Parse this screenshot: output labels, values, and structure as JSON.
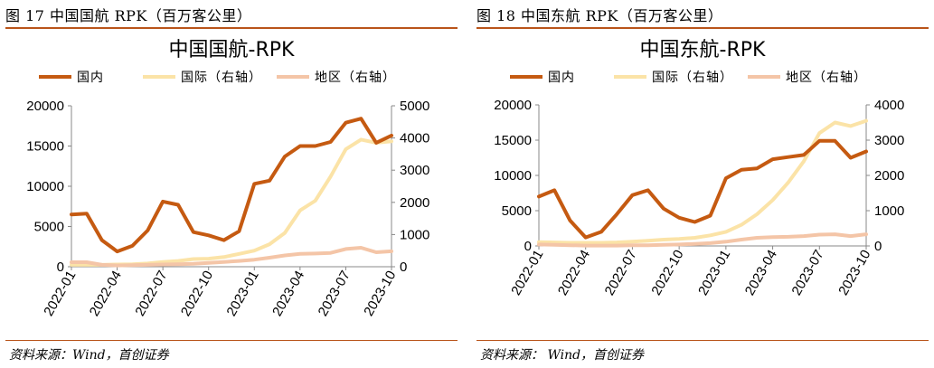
{
  "charts": [
    {
      "caption": "图 17 中国国航 RPK（百万客公里）",
      "source": "资料来源：Wind，首创证券",
      "chart_data": {
        "type": "line",
        "title": "中国国航-RPK",
        "x": [
          "2022-01",
          "2022-02",
          "2022-03",
          "2022-04",
          "2022-05",
          "2022-06",
          "2022-07",
          "2022-08",
          "2022-09",
          "2022-10",
          "2022-11",
          "2022-12",
          "2023-01",
          "2023-02",
          "2023-03",
          "2023-04",
          "2023-05",
          "2023-06",
          "2023-07",
          "2023-08",
          "2023-09",
          "2023-10"
        ],
        "x_tick_labels": [
          "2022-01",
          "2022-04",
          "2022-07",
          "2022-10",
          "2023-01",
          "2023-04",
          "2023-07",
          "2023-10"
        ],
        "ylim_left": [
          0,
          20000
        ],
        "yticks_left": [
          "0",
          "5000",
          "10000",
          "15000",
          "20000"
        ],
        "ylim_right": [
          0,
          5000
        ],
        "yticks_right": [
          "0",
          "1000",
          "2000",
          "3000",
          "4000",
          "5000"
        ],
        "series": [
          {
            "name": "国内",
            "axis": "left",
            "color": "#c55a11",
            "values": [
              6500,
              6600,
              3300,
              1900,
              2600,
              4500,
              8100,
              7700,
              4300,
              3900,
              3300,
              4400,
              10300,
              10700,
              13700,
              15000,
              15000,
              15500,
              17900,
              18400,
              15400,
              16300
            ]
          },
          {
            "name": "国际（右轴）",
            "axis": "right",
            "color": "#fbe3a7",
            "values": [
              60,
              60,
              60,
              70,
              80,
              100,
              150,
              180,
              240,
              250,
              300,
              400,
              500,
              700,
              1050,
              1750,
              2050,
              2800,
              3650,
              3950,
              3850,
              3900
            ]
          },
          {
            "name": "地区（右轴）",
            "axis": "right",
            "color": "#f4c5a7",
            "values": [
              140,
              140,
              60,
              40,
              50,
              60,
              70,
              80,
              90,
              120,
              150,
              180,
              220,
              280,
              350,
              400,
              410,
              430,
              550,
              590,
              450,
              480
            ]
          }
        ]
      }
    },
    {
      "caption": "图 18 中国东航 RPK（百万客公里）",
      "source": "资料来源： Wind，首创证券",
      "chart_data": {
        "type": "line",
        "title": "中国东航-RPK",
        "x": [
          "2022-01",
          "2022-02",
          "2022-03",
          "2022-04",
          "2022-05",
          "2022-06",
          "2022-07",
          "2022-08",
          "2022-09",
          "2022-10",
          "2022-11",
          "2022-12",
          "2023-01",
          "2023-02",
          "2023-03",
          "2023-04",
          "2023-05",
          "2023-06",
          "2023-07",
          "2023-08",
          "2023-09",
          "2023-10"
        ],
        "x_tick_labels": [
          "2022-01",
          "2022-04",
          "2022-07",
          "2022-10",
          "2023-01",
          "2023-04",
          "2023-07",
          "2023-10"
        ],
        "ylim_left": [
          0,
          20000
        ],
        "yticks_left": [
          "0",
          "5000",
          "10000",
          "15000",
          "20000"
        ],
        "ylim_right": [
          0,
          4000
        ],
        "yticks_right": [
          "0",
          "1000",
          "2000",
          "3000",
          "4000"
        ],
        "series": [
          {
            "name": "国内",
            "axis": "left",
            "color": "#c55a11",
            "values": [
              7000,
              7900,
              3600,
              1200,
              2000,
              4500,
              7200,
              7900,
              5300,
              4000,
              3400,
              4300,
              9600,
              10800,
              11000,
              12300,
              12600,
              12900,
              14900,
              14900,
              12500,
              13400
            ]
          },
          {
            "name": "国际（右轴）",
            "axis": "right",
            "color": "#fbe3a7",
            "values": [
              110,
              100,
              90,
              90,
              90,
              100,
              120,
              150,
              180,
              200,
              230,
              300,
              400,
              600,
              900,
              1300,
              1800,
              2400,
              3200,
              3500,
              3400,
              3550
            ]
          },
          {
            "name": "地区（右轴）",
            "axis": "right",
            "color": "#f4c5a7",
            "values": [
              40,
              30,
              20,
              10,
              10,
              10,
              20,
              20,
              30,
              40,
              60,
              80,
              120,
              180,
              230,
              250,
              260,
              280,
              320,
              330,
              280,
              330
            ]
          }
        ]
      }
    }
  ]
}
